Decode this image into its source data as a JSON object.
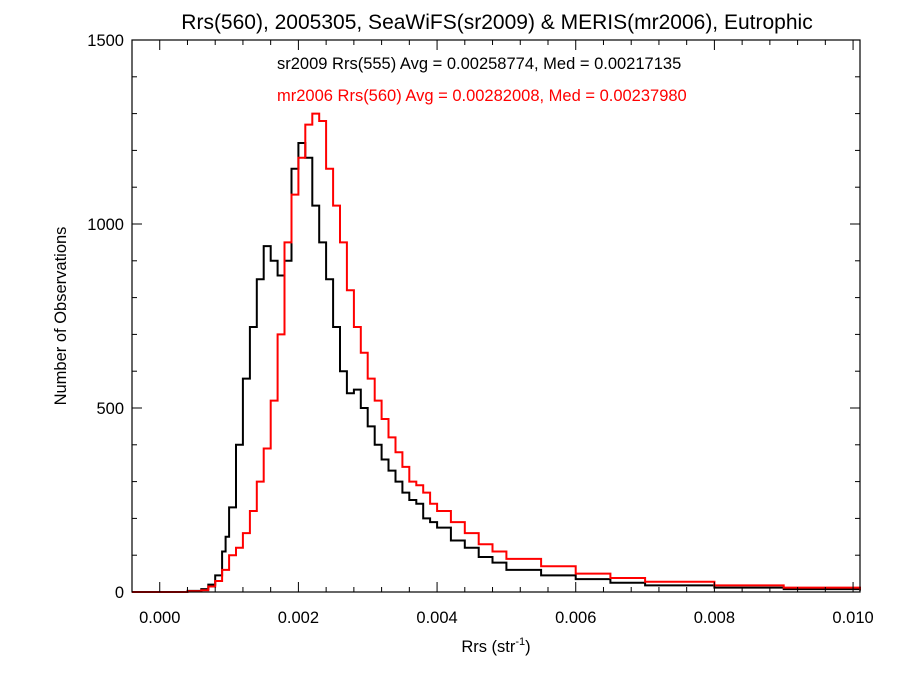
{
  "chart_data": {
    "type": "histogram",
    "title": "Rrs(560), 2005305, SeaWiFS(sr2009) & MERIS(mr2006), Eutrophic",
    "xlabel": {
      "main": "Rrs (str",
      "sup": "-1",
      "end": ")"
    },
    "ylabel": "Number of Observations",
    "xlim": [
      -0.0004,
      0.0101
    ],
    "ylim": [
      0,
      1500
    ],
    "xticks": [
      0.0,
      0.002,
      0.004,
      0.006,
      0.008,
      0.01
    ],
    "xtick_labels": [
      "0.000",
      "0.002",
      "0.004",
      "0.006",
      "0.008",
      "0.010"
    ],
    "yticks": [
      0,
      500,
      1000,
      1500
    ],
    "ytick_labels": [
      "0",
      "500",
      "1000",
      "1500"
    ],
    "annotations": [
      "sr2009 Rrs(555) Avg = 0.00258774, Med = 0.00217135",
      "mr2006 Rrs(560) Avg = 0.00282008, Med = 0.00237980"
    ],
    "series": [
      {
        "color": "#000000",
        "x": [
          -0.0004,
          0.0004,
          0.0006,
          0.0007,
          0.0008,
          0.0009,
          0.00095,
          0.001,
          0.0011,
          0.0012,
          0.0013,
          0.0014,
          0.0015,
          0.0016,
          0.0017,
          0.0018,
          0.0019,
          0.002,
          0.0021,
          0.0022,
          0.0023,
          0.0024,
          0.0025,
          0.0026,
          0.0027,
          0.0028,
          0.0029,
          0.003,
          0.0031,
          0.0032,
          0.0033,
          0.0034,
          0.0035,
          0.0036,
          0.0037,
          0.0038,
          0.0039,
          0.004,
          0.0042,
          0.0044,
          0.0046,
          0.0048,
          0.005,
          0.0055,
          0.006,
          0.0065,
          0.007,
          0.008,
          0.009,
          0.0101
        ],
        "y": [
          0,
          3,
          8,
          20,
          45,
          110,
          150,
          230,
          400,
          580,
          720,
          850,
          940,
          900,
          860,
          900,
          1150,
          1220,
          1180,
          1050,
          950,
          850,
          720,
          600,
          540,
          550,
          500,
          450,
          400,
          360,
          330,
          300,
          270,
          250,
          240,
          200,
          190,
          175,
          140,
          120,
          95,
          80,
          60,
          45,
          35,
          25,
          18,
          12,
          8,
          4
        ]
      },
      {
        "color": "#ff0000",
        "x": [
          -0.0004,
          0.0004,
          0.0006,
          0.0007,
          0.0008,
          0.0009,
          0.001,
          0.0011,
          0.0012,
          0.0013,
          0.0014,
          0.0015,
          0.0016,
          0.0017,
          0.0018,
          0.0019,
          0.002,
          0.0021,
          0.0022,
          0.0023,
          0.0024,
          0.0025,
          0.0026,
          0.0027,
          0.0028,
          0.0029,
          0.003,
          0.0031,
          0.0032,
          0.0033,
          0.0034,
          0.0035,
          0.0036,
          0.0037,
          0.0038,
          0.0039,
          0.004,
          0.0042,
          0.0044,
          0.0046,
          0.0048,
          0.005,
          0.0055,
          0.006,
          0.0065,
          0.007,
          0.008,
          0.009,
          0.0101
        ],
        "y": [
          0,
          2,
          5,
          15,
          30,
          60,
          100,
          120,
          160,
          220,
          300,
          390,
          520,
          700,
          950,
          1080,
          1180,
          1270,
          1300,
          1280,
          1150,
          1050,
          950,
          820,
          720,
          650,
          580,
          520,
          470,
          420,
          380,
          340,
          300,
          290,
          270,
          240,
          220,
          190,
          160,
          130,
          110,
          90,
          70,
          50,
          38,
          28,
          18,
          12,
          6
        ]
      }
    ]
  }
}
